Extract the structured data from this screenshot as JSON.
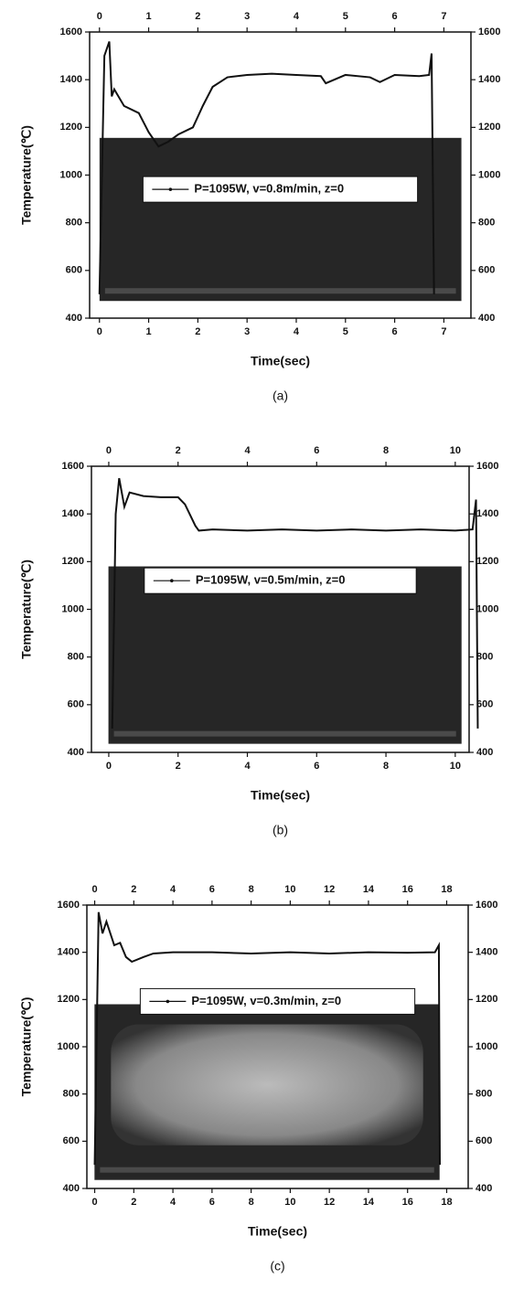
{
  "chart_data": [
    {
      "type": "line",
      "caption": "(a)",
      "xlabel": "Time(sec)",
      "ylabel": "Temperature(℃)",
      "legend": "center",
      "x": [
        0,
        0.1,
        0.2,
        0.25,
        0.3,
        0.5,
        0.8,
        1.0,
        1.2,
        1.4,
        1.6,
        1.9,
        2.1,
        2.3,
        2.6,
        3,
        3.5,
        4,
        4.5,
        4.6,
        5,
        5.5,
        5.7,
        6,
        6.5,
        6.7,
        6.75,
        6.8
      ],
      "series": [
        {
          "name": "P=1095W, v=0.8m/min, z=0",
          "color": "#111111",
          "values": [
            500,
            1500,
            1560,
            1330,
            1360,
            1290,
            1260,
            1180,
            1120,
            1140,
            1170,
            1200,
            1290,
            1370,
            1410,
            1420,
            1425,
            1420,
            1415,
            1385,
            1420,
            1410,
            1390,
            1420,
            1415,
            1420,
            1510,
            500
          ]
        }
      ],
      "xlim": [
        -0.2,
        7.55
      ],
      "ylim": [
        400,
        1600
      ],
      "xticks": [
        0,
        1,
        2,
        3,
        4,
        5,
        6,
        7
      ],
      "yticks": [
        400,
        600,
        800,
        1000,
        1200,
        1400,
        1600
      ],
      "x2lim": [
        -0.2,
        7.55
      ],
      "x2ticks": [
        0,
        1,
        2,
        3,
        4,
        5,
        6,
        7
      ],
      "y2lim": [
        400,
        1600
      ],
      "y2ticks": [
        400,
        600,
        800,
        1000,
        1200,
        1400,
        1600
      ]
    },
    {
      "type": "line",
      "caption": "(b)",
      "xlabel": "Time(sec)",
      "ylabel": "Temperature(℃)",
      "legend": "center",
      "x": [
        0.1,
        0.2,
        0.3,
        0.45,
        0.6,
        1,
        1.5,
        2,
        2.2,
        2.5,
        2.6,
        3,
        4,
        5,
        6,
        7,
        8,
        9,
        10,
        10.5,
        10.6,
        10.65
      ],
      "series": [
        {
          "name": "P=1095W, v=0.5m/min, z=0",
          "color": "#111111",
          "values": [
            500,
            1400,
            1550,
            1430,
            1490,
            1475,
            1470,
            1470,
            1440,
            1350,
            1330,
            1335,
            1330,
            1335,
            1330,
            1335,
            1330,
            1335,
            1330,
            1335,
            1460,
            500
          ]
        }
      ],
      "xlim": [
        -0.5,
        10.4
      ],
      "ylim": [
        400,
        1600
      ],
      "xticks": [
        0,
        2,
        4,
        6,
        8,
        10
      ],
      "yticks": [
        400,
        600,
        800,
        1000,
        1200,
        1400,
        1600
      ],
      "x2lim": [
        -0.5,
        10.4
      ],
      "x2ticks": [
        0,
        2,
        4,
        6,
        8,
        10
      ],
      "y2lim": [
        400,
        1600
      ],
      "y2ticks": [
        400,
        600,
        800,
        1000,
        1200,
        1400,
        1600
      ]
    },
    {
      "type": "line",
      "caption": "(c)",
      "xlabel": "Time(sec)",
      "ylabel": "Temperature(℃)",
      "legend": "center",
      "x": [
        0,
        0.2,
        0.4,
        0.6,
        1,
        1.3,
        1.6,
        1.9,
        2.5,
        3,
        4,
        6,
        8,
        10,
        12,
        14,
        16,
        17.4,
        17.6,
        17.65
      ],
      "series": [
        {
          "name": "P=1095W, v=0.3m/min, z=0",
          "color": "#111111",
          "values": [
            500,
            1570,
            1480,
            1530,
            1430,
            1440,
            1380,
            1360,
            1380,
            1395,
            1400,
            1400,
            1395,
            1400,
            1395,
            1400,
            1398,
            1400,
            1430,
            500
          ]
        }
      ],
      "xlim": [
        -0.4,
        19.1
      ],
      "ylim": [
        400,
        1600
      ],
      "xticks": [
        0,
        2,
        4,
        6,
        8,
        10,
        12,
        14,
        16,
        18
      ],
      "yticks": [
        400,
        600,
        800,
        1000,
        1200,
        1400,
        1600
      ],
      "x2lim": [
        -0.4,
        19.1
      ],
      "x2ticks": [
        0,
        2,
        4,
        6,
        8,
        10,
        12,
        14,
        16,
        18
      ],
      "y2lim": [
        400,
        1600
      ],
      "y2ticks": [
        400,
        600,
        800,
        1000,
        1200,
        1400,
        1600
      ]
    }
  ]
}
